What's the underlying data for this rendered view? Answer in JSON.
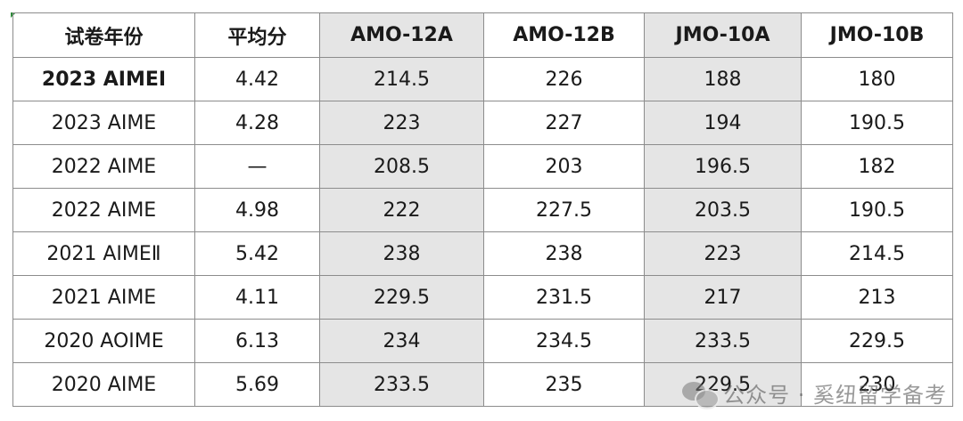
{
  "table": {
    "headers": [
      "试卷年份",
      "平均分",
      "AMO-12A",
      "AMO-12B",
      "JMO-10A",
      "JMO-10B"
    ],
    "rows": [
      [
        "2023 AIMEI",
        "4.42",
        "214.5",
        "226",
        "188",
        "180"
      ],
      [
        "2023 AIME",
        "4.28",
        "223",
        "227",
        "194",
        "190.5"
      ],
      [
        "2022 AIME",
        "—",
        "208.5",
        "203",
        "196.5",
        "182"
      ],
      [
        "2022 AIME",
        "4.98",
        "222",
        "227.5",
        "203.5",
        "190.5"
      ],
      [
        "2021 AIMEⅡ",
        "5.42",
        "238",
        "238",
        "223",
        "214.5"
      ],
      [
        "2021 AIME",
        "4.11",
        "229.5",
        "231.5",
        "217",
        "213"
      ],
      [
        "2020 AOIME",
        "6.13",
        "234",
        "234.5",
        "233.5",
        "229.5"
      ],
      [
        "2020 AIME",
        "5.69",
        "233.5",
        "235",
        "229.5",
        "230"
      ]
    ],
    "shaded_color": "#e5e5e5",
    "border_color": "#8c8c8c"
  },
  "watermark": {
    "text": "公众号 · 奚纽留学备考",
    "icon": "wechat-icon"
  }
}
